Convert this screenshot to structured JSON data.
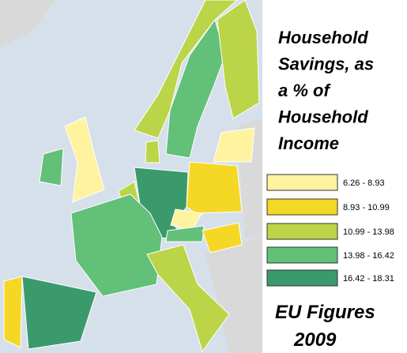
{
  "title_lines": [
    "Household",
    "Savings, as",
    "a % of",
    "Household",
    "Income"
  ],
  "legend": [
    {
      "label": "6.26 - 8.93",
      "color": "#fff3a0"
    },
    {
      "label": "8.93 - 10.99",
      "color": "#f5d726"
    },
    {
      "label": "10.99 - 13.98",
      "color": "#bcd448"
    },
    {
      "label": "13.98 - 16.42",
      "color": "#62c078"
    },
    {
      "label": "16.42 - 18.31",
      "color": "#3b9a6c"
    }
  ],
  "footer_lines": [
    "EU Figures",
    "2009"
  ]
}
